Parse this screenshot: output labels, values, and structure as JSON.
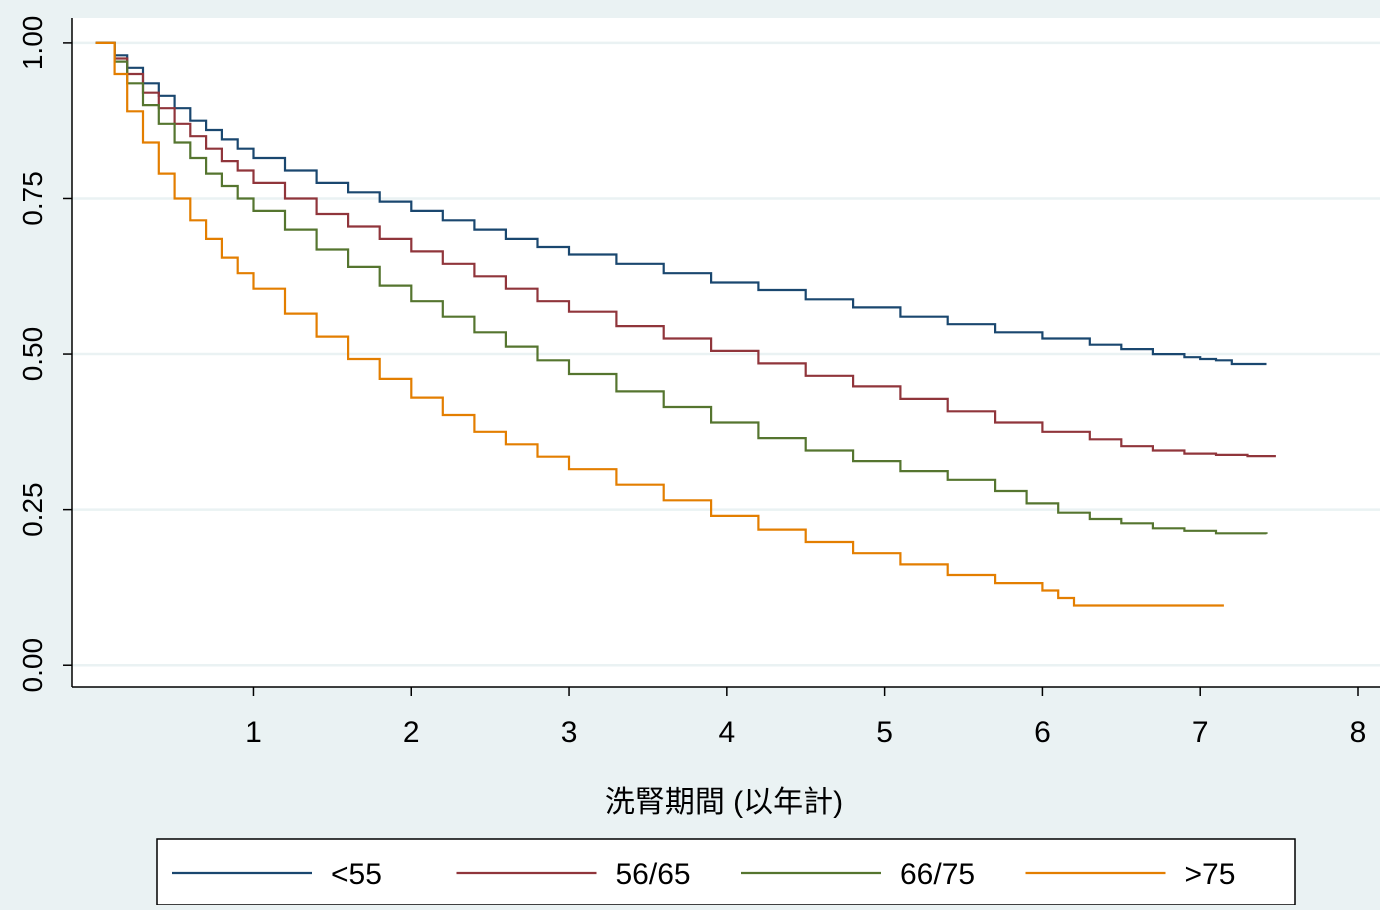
{
  "chart_data": {
    "type": "line",
    "step": true,
    "title": "",
    "xlabel": "洗腎期間 (以年計)",
    "ylabel": "",
    "xlim": [
      -0.15,
      8.0
    ],
    "ylim": [
      -0.035,
      1.04
    ],
    "xticks": [
      1,
      2,
      3,
      4,
      5,
      6,
      7,
      8
    ],
    "xtick_labels": [
      "1",
      "2",
      "3",
      "4",
      "5",
      "6",
      "7",
      "8"
    ],
    "yticks": [
      0,
      0.25,
      0.5,
      0.75,
      1.0
    ],
    "ytick_labels": [
      "0.00",
      "0.25",
      "0.50",
      "0.75",
      "1.00"
    ],
    "grid": true,
    "legend_position": "bottom",
    "colors": {
      "background": "#eaf2f3",
      "plot_background": "#ffffff",
      "grid": "#eaf2f3",
      "axis": "#000000"
    },
    "series": [
      {
        "name": "<55",
        "color": "#1a476f",
        "x": [
          0,
          0.08,
          0.12,
          0.2,
          0.3,
          0.4,
          0.5,
          0.6,
          0.7,
          0.8,
          0.9,
          1.0,
          1.2,
          1.4,
          1.6,
          1.8,
          2.0,
          2.2,
          2.4,
          2.6,
          2.8,
          3.0,
          3.3,
          3.6,
          3.9,
          4.2,
          4.5,
          4.8,
          5.1,
          5.4,
          5.7,
          6.0,
          6.3,
          6.5,
          6.7,
          6.9,
          7.0,
          7.1,
          7.2,
          7.42
        ],
        "y": [
          1.0,
          1.0,
          0.98,
          0.96,
          0.935,
          0.915,
          0.895,
          0.875,
          0.86,
          0.845,
          0.83,
          0.815,
          0.795,
          0.775,
          0.76,
          0.745,
          0.73,
          0.715,
          0.7,
          0.685,
          0.672,
          0.66,
          0.645,
          0.63,
          0.615,
          0.603,
          0.588,
          0.575,
          0.56,
          0.548,
          0.535,
          0.525,
          0.515,
          0.508,
          0.5,
          0.495,
          0.492,
          0.49,
          0.484,
          0.484
        ]
      },
      {
        "name": "56/65",
        "color": "#90353b",
        "x": [
          0,
          0.08,
          0.12,
          0.2,
          0.3,
          0.4,
          0.5,
          0.6,
          0.7,
          0.8,
          0.9,
          1.0,
          1.2,
          1.4,
          1.6,
          1.8,
          2.0,
          2.2,
          2.4,
          2.6,
          2.8,
          3.0,
          3.3,
          3.6,
          3.9,
          4.2,
          4.5,
          4.8,
          5.1,
          5.4,
          5.7,
          6.0,
          6.3,
          6.5,
          6.7,
          6.9,
          7.1,
          7.3,
          7.48
        ],
        "y": [
          1.0,
          1.0,
          0.975,
          0.95,
          0.92,
          0.895,
          0.87,
          0.85,
          0.83,
          0.81,
          0.795,
          0.775,
          0.75,
          0.725,
          0.705,
          0.685,
          0.665,
          0.645,
          0.625,
          0.605,
          0.585,
          0.568,
          0.545,
          0.525,
          0.505,
          0.485,
          0.465,
          0.448,
          0.428,
          0.408,
          0.39,
          0.375,
          0.363,
          0.352,
          0.345,
          0.34,
          0.338,
          0.336,
          0.336
        ]
      },
      {
        "name": "66/75",
        "color": "#55752f",
        "x": [
          0,
          0.08,
          0.12,
          0.2,
          0.3,
          0.4,
          0.5,
          0.6,
          0.7,
          0.8,
          0.9,
          1.0,
          1.2,
          1.4,
          1.6,
          1.8,
          2.0,
          2.2,
          2.4,
          2.6,
          2.8,
          3.0,
          3.3,
          3.6,
          3.9,
          4.2,
          4.5,
          4.8,
          5.1,
          5.4,
          5.7,
          5.9,
          6.1,
          6.3,
          6.5,
          6.7,
          6.9,
          7.1,
          7.42
        ],
        "y": [
          1.0,
          1.0,
          0.97,
          0.935,
          0.9,
          0.87,
          0.84,
          0.815,
          0.79,
          0.77,
          0.75,
          0.73,
          0.7,
          0.668,
          0.64,
          0.61,
          0.585,
          0.56,
          0.535,
          0.512,
          0.49,
          0.468,
          0.44,
          0.415,
          0.39,
          0.365,
          0.345,
          0.328,
          0.312,
          0.298,
          0.28,
          0.26,
          0.245,
          0.235,
          0.228,
          0.22,
          0.216,
          0.212,
          0.211
        ]
      },
      {
        "name": ">75",
        "color": "#e37e00",
        "x": [
          0,
          0.08,
          0.12,
          0.2,
          0.3,
          0.4,
          0.5,
          0.6,
          0.7,
          0.8,
          0.9,
          1.0,
          1.2,
          1.4,
          1.6,
          1.8,
          2.0,
          2.2,
          2.4,
          2.6,
          2.8,
          3.0,
          3.3,
          3.6,
          3.9,
          4.2,
          4.5,
          4.8,
          5.1,
          5.4,
          5.7,
          6.0,
          6.1,
          6.2,
          6.5,
          6.8,
          7.0,
          7.15
        ],
        "y": [
          1.0,
          1.0,
          0.95,
          0.89,
          0.84,
          0.79,
          0.75,
          0.715,
          0.685,
          0.655,
          0.63,
          0.605,
          0.565,
          0.528,
          0.492,
          0.46,
          0.43,
          0.402,
          0.375,
          0.355,
          0.335,
          0.315,
          0.29,
          0.265,
          0.24,
          0.218,
          0.198,
          0.18,
          0.162,
          0.145,
          0.132,
          0.12,
          0.108,
          0.096,
          0.096,
          0.096,
          0.096,
          0.096
        ]
      }
    ]
  }
}
